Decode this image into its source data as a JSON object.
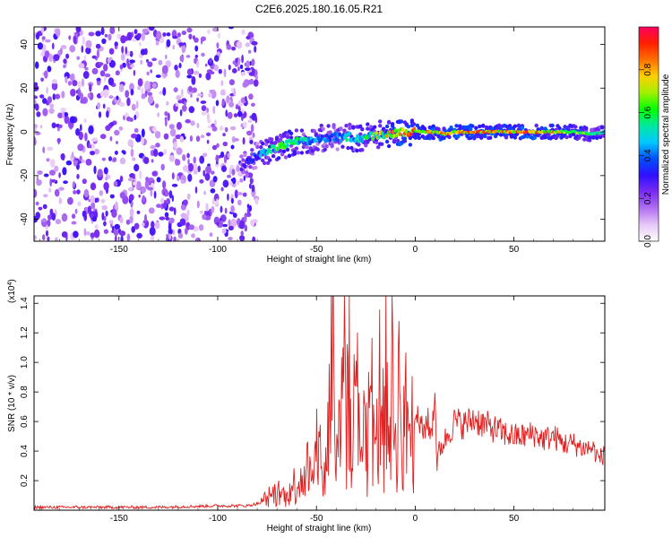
{
  "chart_data": [
    {
      "type": "heatmap",
      "title": "C2E6.2025.180.16.05.R21",
      "xlabel": "Height of straight line (km)",
      "ylabel": "Frequency (Hz)",
      "xlim": [
        -193,
        96
      ],
      "ylim": [
        -50,
        48
      ],
      "xticks": [
        -150,
        -100,
        -50,
        0,
        50
      ],
      "yticks": [
        -40,
        -20,
        0,
        20,
        40
      ],
      "colorbar": {
        "label": "Normalized spectral amplitude",
        "range": [
          0,
          1
        ],
        "ticks": [
          "0.0",
          "0.2",
          "0.4",
          "0.6",
          "0.8"
        ],
        "colors": [
          "#ffffff",
          "#e8c8f8",
          "#b070f0",
          "#7a2cf0",
          "#3010ff",
          "#0050ff",
          "#00c8ff",
          "#00e8a0",
          "#00ff00",
          "#a0f000",
          "#ffd000",
          "#ff7000",
          "#ff2000",
          "#ff0060"
        ]
      },
      "noise_region": {
        "x_from": -193,
        "x_to": -80,
        "typical_amplitude": 0.2
      },
      "signal_track": {
        "x": [
          -88,
          -85,
          -82,
          -78,
          -75,
          -72,
          -70,
          -66,
          -62,
          -58,
          -55,
          -52,
          -48,
          -45,
          -42,
          -40,
          -37,
          -34,
          -30,
          -27,
          -24,
          -21,
          -18,
          -15,
          -12,
          -9,
          -6,
          -3,
          0,
          5,
          10,
          15,
          20,
          30,
          40,
          50,
          60,
          70,
          80,
          90,
          96
        ],
        "frequency": [
          -17,
          -14,
          -12,
          -10,
          -9,
          -8,
          -7,
          -6,
          -5,
          -4,
          -5,
          -4,
          -3,
          -3,
          -3,
          -2,
          -3,
          -2,
          -3,
          -3,
          -2,
          -2,
          -1,
          -1,
          -1,
          0,
          0,
          0,
          0,
          0,
          0,
          -1,
          0,
          0,
          0,
          0,
          0,
          0,
          0,
          -1,
          0
        ],
        "amplitude": [
          0.25,
          0.3,
          0.35,
          0.45,
          0.55,
          0.6,
          0.65,
          0.65,
          0.6,
          0.55,
          0.5,
          0.45,
          0.45,
          0.4,
          0.45,
          0.4,
          0.5,
          0.55,
          0.5,
          0.55,
          0.6,
          0.65,
          0.7,
          0.75,
          0.8,
          0.8,
          0.85,
          0.85,
          0.85,
          0.8,
          0.85,
          0.85,
          0.85,
          0.85,
          0.85,
          0.85,
          0.85,
          0.8,
          0.75,
          0.6,
          0.5
        ]
      }
    },
    {
      "type": "line",
      "xlabel": "Height of straight line (km)",
      "ylabel": "SNR (10 * v/v)",
      "yscale_label": "(x10",
      "yscale_exponent": "4",
      "yscale_close": ")",
      "xlim": [
        -193,
        96
      ],
      "ylim": [
        0,
        1.45
      ],
      "xticks": [
        -150,
        -100,
        -50,
        0,
        50
      ],
      "yticks": [
        0.2,
        0.4,
        0.6,
        0.8,
        1.0,
        1.2,
        1.4
      ],
      "series": [
        {
          "color": "#e02020",
          "x": [
            -193,
            -160,
            -130,
            -100,
            -85,
            -78,
            -74,
            -70,
            -66,
            -62,
            -58,
            -55,
            -52,
            -49,
            -46,
            -44,
            -42,
            -40,
            -38,
            -37,
            -36,
            -35,
            -34,
            -33,
            -32,
            -30,
            -28,
            -26,
            -24,
            -22,
            -20,
            -18,
            -16,
            -15,
            -14,
            -12,
            -10,
            -8,
            -6,
            -4,
            -2,
            0,
            2,
            4,
            6,
            8,
            10,
            11,
            12,
            14,
            16,
            18,
            20,
            25,
            30,
            35,
            40,
            45,
            50,
            55,
            60,
            65,
            70,
            75,
            80,
            85,
            90,
            93,
            96
          ],
          "y": [
            0.02,
            0.02,
            0.02,
            0.03,
            0.03,
            0.05,
            0.09,
            0.12,
            0.1,
            0.16,
            0.22,
            0.3,
            0.18,
            0.45,
            0.2,
            0.55,
            1.25,
            0.3,
            0.82,
            0.5,
            1.45,
            0.4,
            1.33,
            0.6,
            0.28,
            0.9,
            0.35,
            0.75,
            0.45,
            0.95,
            0.3,
            0.8,
            0.5,
            1.37,
            0.4,
            0.95,
            0.5,
            0.85,
            0.45,
            0.7,
            0.5,
            0.65,
            0.6,
            0.52,
            0.62,
            0.5,
            0.8,
            0.3,
            0.4,
            0.45,
            0.5,
            0.55,
            0.6,
            0.58,
            0.62,
            0.58,
            0.55,
            0.52,
            0.5,
            0.5,
            0.52,
            0.48,
            0.5,
            0.45,
            0.45,
            0.42,
            0.42,
            0.35,
            0.38
          ]
        }
      ]
    }
  ]
}
